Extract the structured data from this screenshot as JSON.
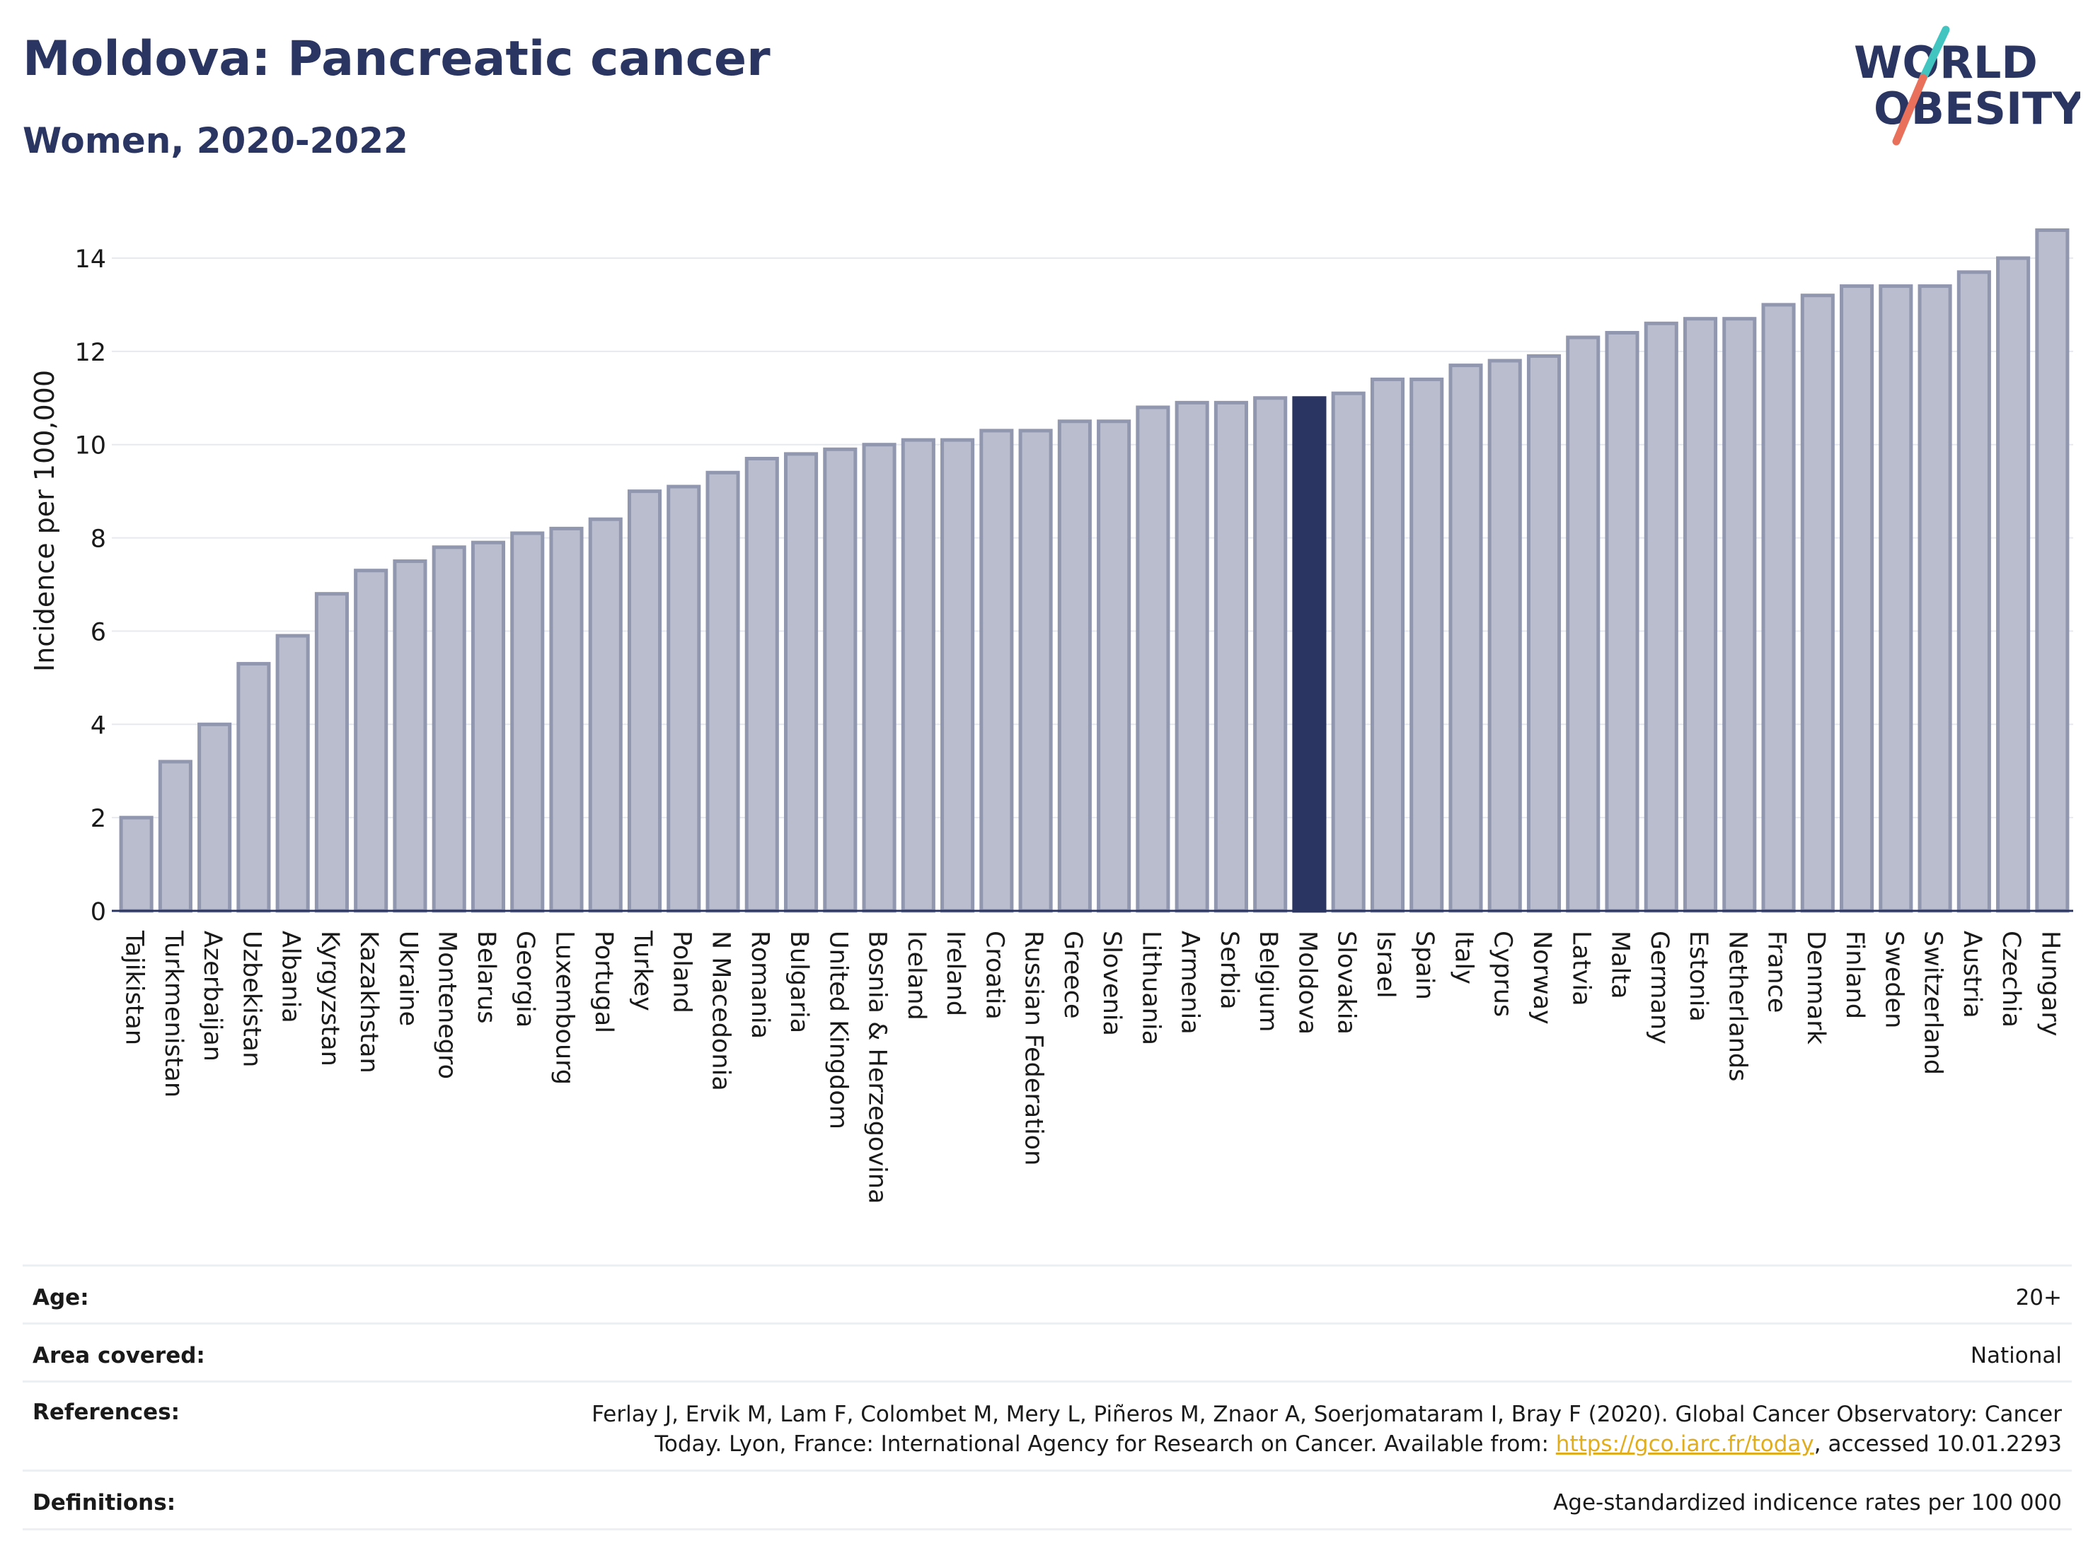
{
  "header": {
    "title": "Moldova: Pancreatic cancer",
    "subtitle": "Women, 2020-2022"
  },
  "logo": {
    "line1": "WORLD",
    "line2": "OBESITY",
    "slash_colors": [
      "#e9705a",
      "#42c4c1"
    ],
    "text_color": "#2b3562"
  },
  "chart_data": {
    "type": "bar",
    "ylabel": "Incidence per 100,000",
    "xlabel": "",
    "ylim": [
      0,
      15
    ],
    "yticks": [
      0,
      2,
      4,
      6,
      8,
      10,
      12,
      14
    ],
    "grid": true,
    "highlight": "Moldova",
    "colors": {
      "default_fill": "#b9bdcd",
      "default_stroke": "#9297b0",
      "highlight_fill": "#2b3562"
    },
    "categories": [
      "Tajikistan",
      "Turkmenistan",
      "Azerbaijan",
      "Uzbekistan",
      "Albania",
      "Kyrgyzstan",
      "Kazakhstan",
      "Ukraine",
      "Montenegro",
      "Belarus",
      "Georgia",
      "Luxembourg",
      "Portugal",
      "Turkey",
      "Poland",
      "N Macedonia",
      "Romania",
      "Bulgaria",
      "United Kingdom",
      "Bosnia & Herzegovina",
      "Iceland",
      "Ireland",
      "Croatia",
      "Russian Federation",
      "Greece",
      "Slovenia",
      "Lithuania",
      "Armenia",
      "Serbia",
      "Belgium",
      "Moldova",
      "Slovakia",
      "Israel",
      "Spain",
      "Italy",
      "Cyprus",
      "Norway",
      "Latvia",
      "Malta",
      "Germany",
      "Estonia",
      "Netherlands",
      "France",
      "Denmark",
      "Finland",
      "Sweden",
      "Switzerland",
      "Austria",
      "Czechia",
      "Hungary"
    ],
    "values": [
      2.0,
      3.2,
      4.0,
      5.3,
      5.9,
      6.8,
      7.3,
      7.5,
      7.8,
      7.9,
      8.1,
      8.2,
      8.4,
      9.0,
      9.1,
      9.4,
      9.7,
      9.8,
      9.9,
      10.0,
      10.1,
      10.1,
      10.3,
      10.3,
      10.5,
      10.5,
      10.8,
      10.9,
      10.9,
      11.0,
      11.0,
      11.1,
      11.4,
      11.4,
      11.7,
      11.8,
      11.9,
      12.3,
      12.4,
      12.6,
      12.7,
      12.7,
      13.0,
      13.2,
      13.4,
      13.4,
      13.4,
      13.7,
      14.0,
      14.6
    ]
  },
  "info": {
    "age_label": "Age:",
    "age_value": "20+",
    "area_label": "Area covered:",
    "area_value": "National",
    "references_label": "References:",
    "references_line1": "Ferlay J, Ervik M, Lam F, Colombet M, Mery L, Piñeros M, Znaor A, Soerjomataram I, Bray F (2020). Global Cancer Observatory: Cancer",
    "references_line2_pre": "Today. Lyon, France: International Agency for Research on Cancer. Available from: ",
    "references_link": "https://gco.iarc.fr/today",
    "references_line2_post": ", accessed 10.01.2293",
    "definitions_label": "Definitions:",
    "definitions_value": "Age-standardized indicence rates per 100 000"
  }
}
